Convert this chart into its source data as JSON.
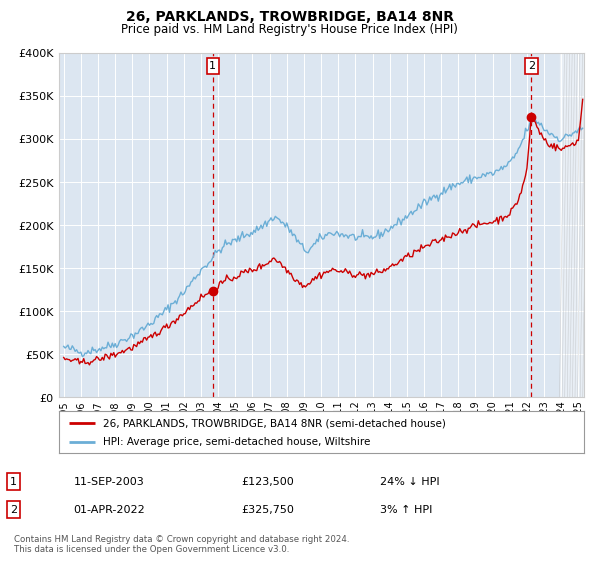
{
  "title": "26, PARKLANDS, TROWBRIDGE, BA14 8NR",
  "subtitle": "Price paid vs. HM Land Registry's House Price Index (HPI)",
  "ylim": [
    0,
    400000
  ],
  "yticks": [
    0,
    50000,
    100000,
    150000,
    200000,
    250000,
    300000,
    350000,
    400000
  ],
  "plot_bg_color": "#dce6f1",
  "hpi_color": "#6baed6",
  "price_color": "#cc0000",
  "marker1_x": 2003.69,
  "marker1_y": 123500,
  "marker2_x": 2022.25,
  "marker2_y": 325750,
  "marker1_label": "11-SEP-2003",
  "marker1_price": "£123,500",
  "marker1_pct": "24% ↓ HPI",
  "marker2_label": "01-APR-2022",
  "marker2_price": "£325,750",
  "marker2_pct": "3% ↑ HPI",
  "legend_line1": "26, PARKLANDS, TROWBRIDGE, BA14 8NR (semi-detached house)",
  "legend_line2": "HPI: Average price, semi-detached house, Wiltshire",
  "footer": "Contains HM Land Registry data © Crown copyright and database right 2024.\nThis data is licensed under the Open Government Licence v3.0.",
  "xlim_left": 1994.7,
  "xlim_right": 2025.3,
  "hatch_start": 2023.9,
  "hatch_end": 2025.3
}
